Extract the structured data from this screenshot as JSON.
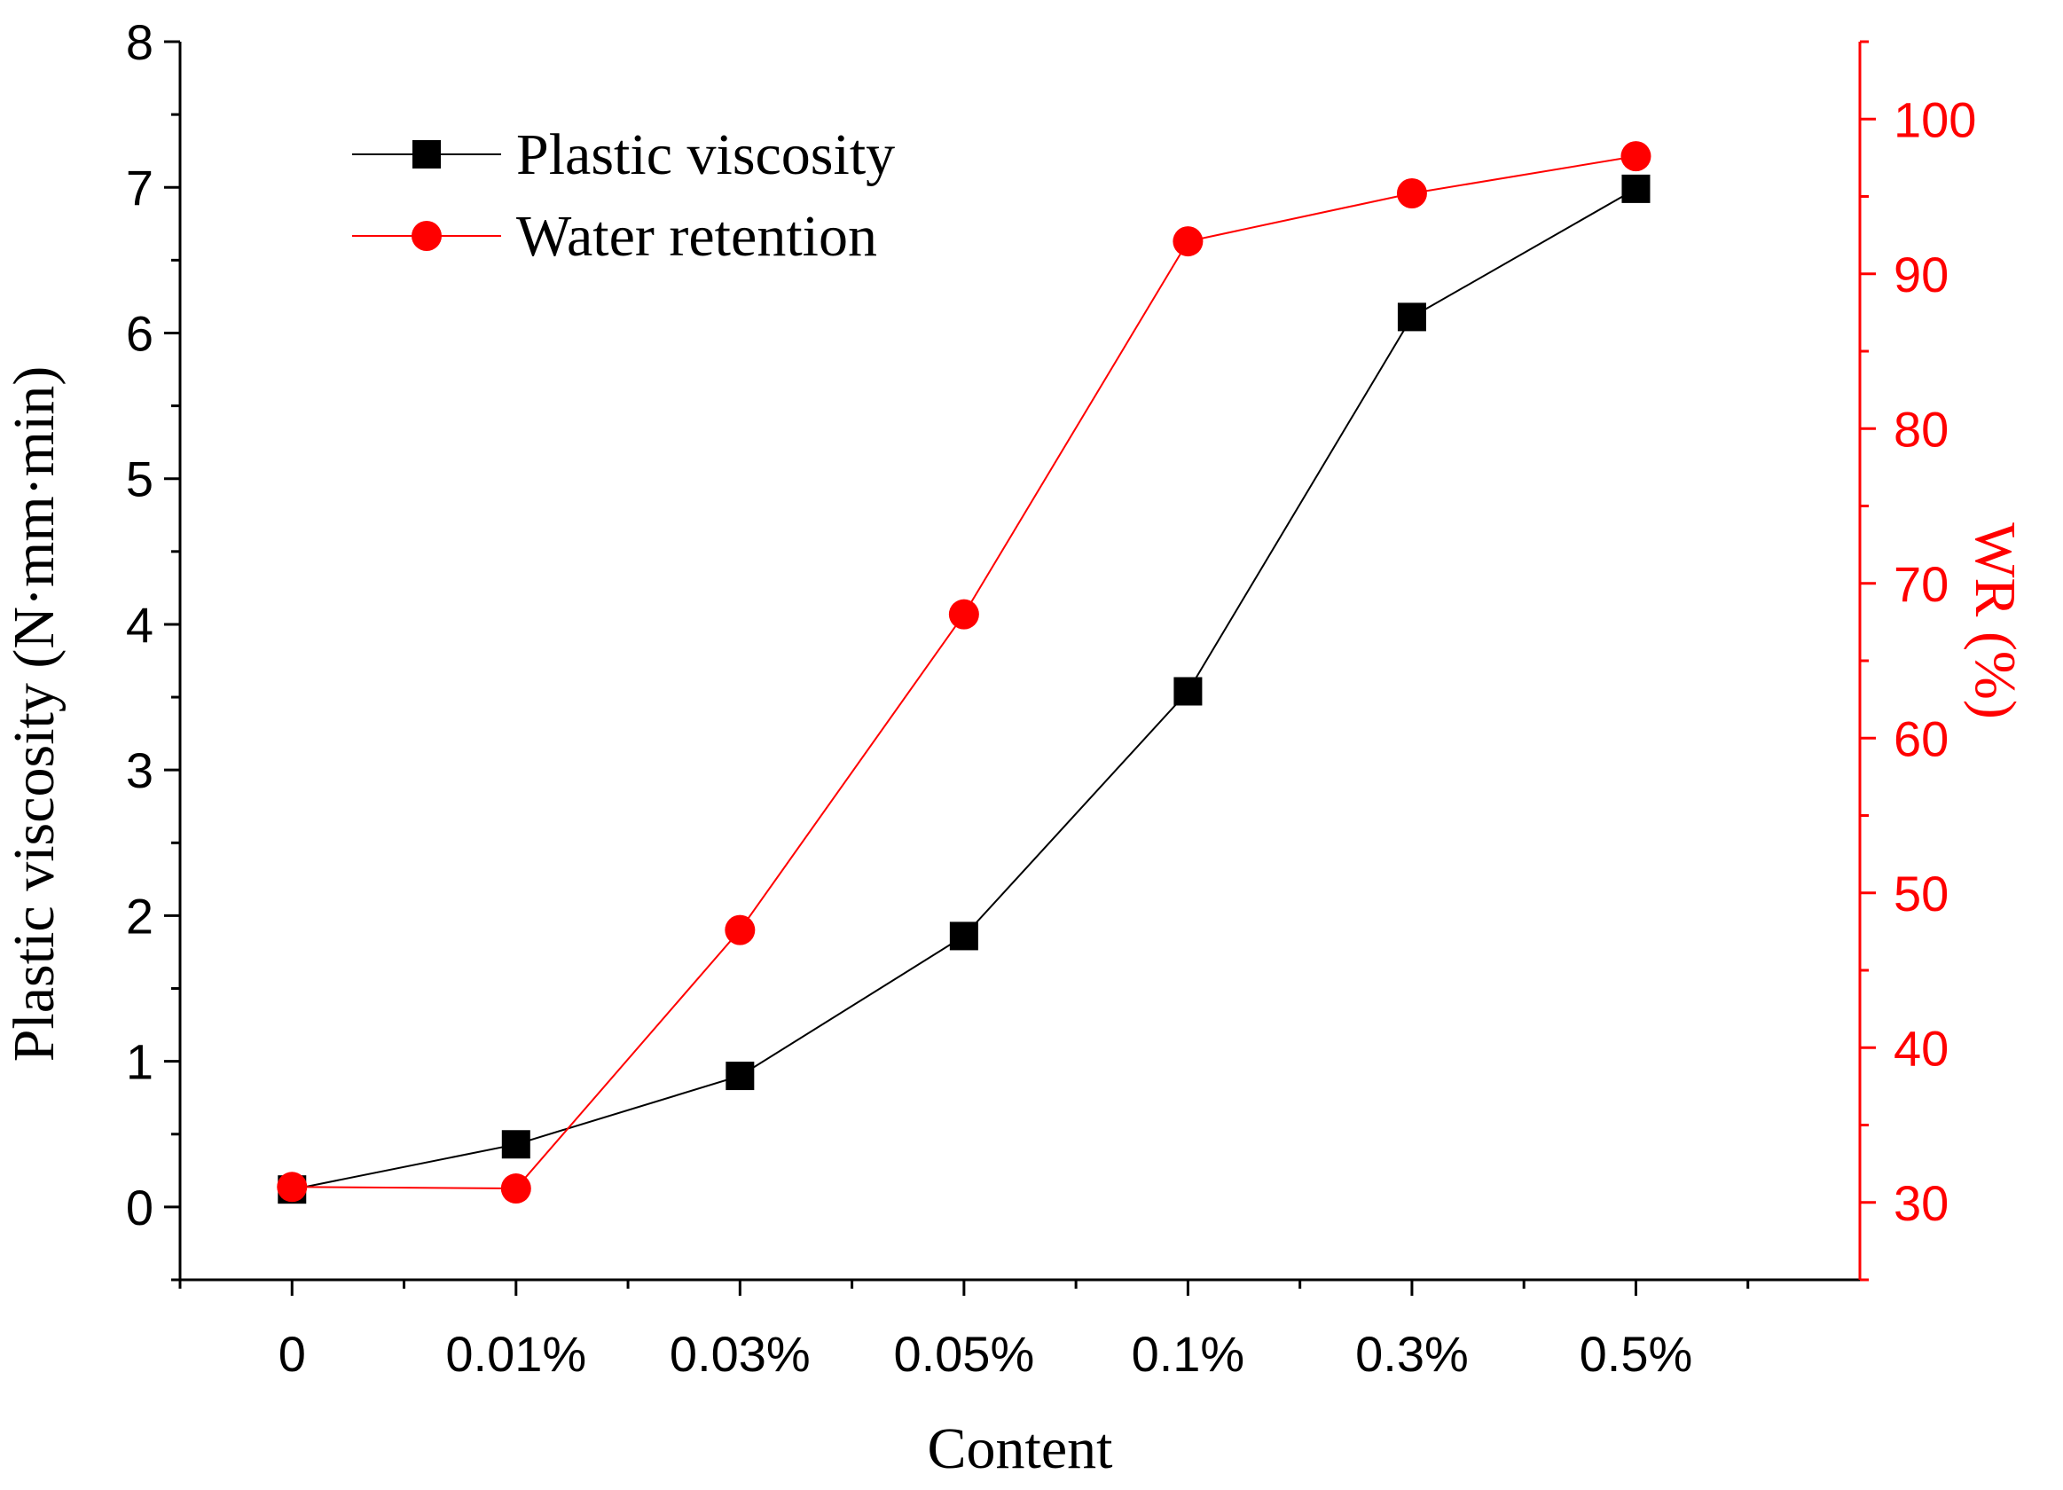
{
  "chart_data": {
    "type": "line",
    "categories": [
      "0",
      "0.01%",
      "0.03%",
      "0.05%",
      "0.1%",
      "0.3%",
      "0.5%"
    ],
    "xlabel": "Content",
    "ylabel_left": "Plastic viscosity (N·mm·min)",
    "ylabel_right": "WR (%)",
    "ylim_left": [
      -0.5,
      8
    ],
    "yticks_left": [
      "0",
      "1",
      "2",
      "3",
      "4",
      "5",
      "6",
      "7",
      "8"
    ],
    "ylim_right": [
      25,
      105
    ],
    "yticks_right": [
      "30",
      "40",
      "50",
      "60",
      "70",
      "80",
      "90",
      "100"
    ],
    "series": [
      {
        "name": "Plastic viscosity",
        "axis": "left",
        "color": "#000000",
        "marker": "square",
        "values": [
          0.12,
          0.43,
          0.9,
          1.86,
          3.54,
          6.11,
          6.99
        ]
      },
      {
        "name": "Water retention",
        "axis": "right",
        "color": "#ff0000",
        "marker": "circle",
        "values": [
          31.0,
          30.9,
          47.6,
          68.0,
          92.1,
          95.2,
          97.6
        ]
      }
    ]
  }
}
